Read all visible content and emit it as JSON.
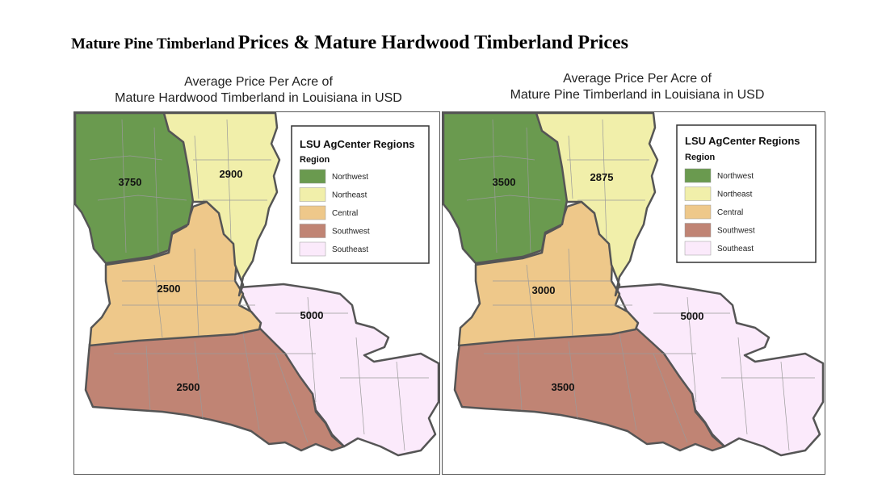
{
  "heading": {
    "part1": "Mature Pine Timberland",
    "part2": "Prices & Mature Hardwood Timberland Prices"
  },
  "maps": [
    {
      "title_line1": "Average Price Per Acre of",
      "title_line2": "Mature Hardwood Timberland  in Louisiana in USD",
      "values": {
        "northwest": "3750",
        "northeast": "2900",
        "central": "2500",
        "southwest": "2500",
        "southeast": "5000"
      }
    },
    {
      "title_line1": "Average Price Per Acre of",
      "title_line2": "Mature Pine Timberland in Louisiana in USD",
      "values": {
        "northwest": "3500",
        "northeast": "2875",
        "central": "3000",
        "southwest": "3500",
        "southeast": "5000"
      }
    }
  ],
  "legend": {
    "title": "LSU AgCenter Regions",
    "subtitle": "Region",
    "items": [
      {
        "key": "northwest",
        "label": "Northwest",
        "color": "#6a9a4f"
      },
      {
        "key": "northeast",
        "label": "Northeast",
        "color": "#f1efaa"
      },
      {
        "key": "central",
        "label": "Central",
        "color": "#eec88a"
      },
      {
        "key": "southwest",
        "label": "Southwest",
        "color": "#c08474"
      },
      {
        "key": "southeast",
        "label": "Southeast",
        "color": "#fbeafb"
      }
    ]
  }
}
